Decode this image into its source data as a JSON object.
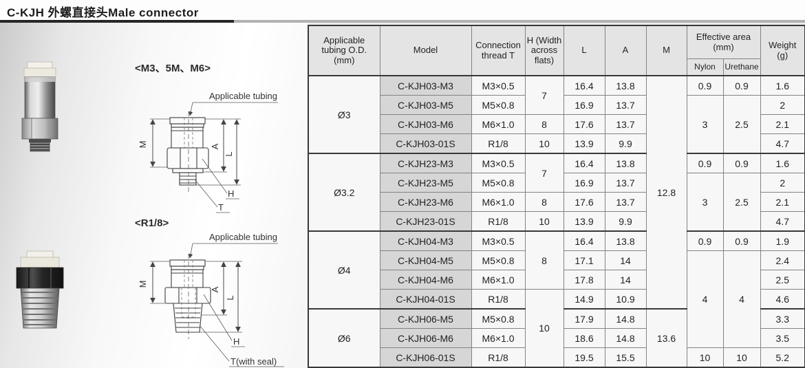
{
  "page": {
    "title": "C-KJH  外螺直接头Male connector"
  },
  "colors": {
    "title_accent_line": "#262626",
    "title_line_gray": "#b2b2b2",
    "table_header_bg": "#e4e4e4",
    "model_cell_bg": "#d6d6d6",
    "cell_bg": "#f7f7f7",
    "border_dark": "#383838",
    "border_light": "#828282",
    "left_panel_gradient_start": "#cbcbcb"
  },
  "left_panel": {
    "diagram1": {
      "variant_label": "<M3、5M、M6>",
      "tubing_label": "Applicable tubing",
      "dims": {
        "m": "M",
        "a": "A",
        "l": "L",
        "h": "H",
        "t": "T"
      }
    },
    "diagram2": {
      "variant_label": "<R1/8>",
      "tubing_label": "Applicable tubing",
      "dims": {
        "m": "M",
        "a": "A",
        "l": "L",
        "h": "H",
        "t": "T(with seal)"
      }
    }
  },
  "table": {
    "headers": {
      "od": "Applicable tubing O.D. (mm)",
      "model": "Model",
      "thread": "Connection thread T",
      "h": "H (Width across flats)",
      "l": "L",
      "a": "A",
      "m": "M",
      "eff": "Effective area (mm)",
      "nylon": "Nylon",
      "urethane": "Urethane",
      "weight": "Weight (g)"
    },
    "body_rows": [
      {
        "cells": [
          {
            "t": "Ø3",
            "rs": 4,
            "cls": "od"
          },
          {
            "t": "C-KJH03-M3",
            "cls": "model"
          },
          {
            "t": "M3×0.5"
          },
          {
            "t": "7",
            "rs": 2
          },
          {
            "t": "16.4"
          },
          {
            "t": "13.8"
          },
          {
            "t": "12.8",
            "rs": 12
          },
          {
            "t": "0.9"
          },
          {
            "t": "0.9"
          },
          {
            "t": "1.6"
          }
        ]
      },
      {
        "cells": [
          {
            "t": "C-KJH03-M5",
            "cls": "model"
          },
          {
            "t": "M5×0.8"
          },
          {
            "t": "16.9"
          },
          {
            "t": "13.7"
          },
          {
            "t": "3",
            "rs": 3
          },
          {
            "t": "2.5",
            "rs": 3
          },
          {
            "t": "2"
          }
        ]
      },
      {
        "cells": [
          {
            "t": "C-KJH03-M6",
            "cls": "model"
          },
          {
            "t": "M6×1.0"
          },
          {
            "t": "8"
          },
          {
            "t": "17.6"
          },
          {
            "t": "13.7"
          },
          {
            "t": "2.1"
          }
        ]
      },
      {
        "cells": [
          {
            "t": "C-KJH03-01S",
            "cls": "model"
          },
          {
            "t": "R1/8"
          },
          {
            "t": "10"
          },
          {
            "t": "13.9"
          },
          {
            "t": "9.9"
          },
          {
            "t": "4.7"
          }
        ]
      },
      {
        "group_start": true,
        "cells": [
          {
            "t": "Ø3.2",
            "rs": 4,
            "cls": "od"
          },
          {
            "t": "C-KJH23-M3",
            "cls": "model"
          },
          {
            "t": "M3×0.5"
          },
          {
            "t": "7",
            "rs": 2
          },
          {
            "t": "16.4"
          },
          {
            "t": "13.8"
          },
          {
            "t": "0.9"
          },
          {
            "t": "0.9"
          },
          {
            "t": "1.6"
          }
        ]
      },
      {
        "cells": [
          {
            "t": "C-KJH23-M5",
            "cls": "model"
          },
          {
            "t": "M5×0.8"
          },
          {
            "t": "16.9"
          },
          {
            "t": "13.7"
          },
          {
            "t": "3",
            "rs": 3
          },
          {
            "t": "2.5",
            "rs": 3
          },
          {
            "t": "2"
          }
        ]
      },
      {
        "cells": [
          {
            "t": "C-KJH23-M6",
            "cls": "model"
          },
          {
            "t": "M6×1.0"
          },
          {
            "t": "8"
          },
          {
            "t": "17.6"
          },
          {
            "t": "13.7"
          },
          {
            "t": "2.1"
          }
        ]
      },
      {
        "cells": [
          {
            "t": "C-KJH23-01S",
            "cls": "model"
          },
          {
            "t": "R1/8"
          },
          {
            "t": "10"
          },
          {
            "t": "13.9"
          },
          {
            "t": "9.9"
          },
          {
            "t": "4.7"
          }
        ]
      },
      {
        "group_start": true,
        "cells": [
          {
            "t": "Ø4",
            "rs": 4,
            "cls": "od"
          },
          {
            "t": "C-KJH04-M3",
            "cls": "model"
          },
          {
            "t": "M3×0.5"
          },
          {
            "t": "8",
            "rs": 3
          },
          {
            "t": "16.4"
          },
          {
            "t": "13.8"
          },
          {
            "t": "0.9"
          },
          {
            "t": "0.9"
          },
          {
            "t": "1.9"
          }
        ]
      },
      {
        "cells": [
          {
            "t": "C-KJH04-M5",
            "cls": "model"
          },
          {
            "t": "M5×0.8"
          },
          {
            "t": "17.1"
          },
          {
            "t": "14"
          },
          {
            "t": "4",
            "rs": 5
          },
          {
            "t": "4",
            "rs": 5
          },
          {
            "t": "2.4"
          }
        ]
      },
      {
        "cells": [
          {
            "t": "C-KJH04-M6",
            "cls": "model"
          },
          {
            "t": "M6×1.0"
          },
          {
            "t": "17.8"
          },
          {
            "t": "14"
          },
          {
            "t": "2.5"
          }
        ]
      },
      {
        "cells": [
          {
            "t": "C-KJH04-01S",
            "cls": "model"
          },
          {
            "t": "R1/8"
          },
          {
            "t": "10",
            "rs": 4
          },
          {
            "t": "14.9"
          },
          {
            "t": "10.9"
          },
          {
            "t": "4.6"
          }
        ]
      },
      {
        "group_start": true,
        "cells": [
          {
            "t": "Ø6",
            "rs": 3,
            "cls": "od"
          },
          {
            "t": "C-KJH06-M5",
            "cls": "model"
          },
          {
            "t": "M5×0.8"
          },
          {
            "t": "17.9"
          },
          {
            "t": "14.8"
          },
          {
            "t": "13.6",
            "rs": 3
          },
          {
            "t": "3.3"
          }
        ]
      },
      {
        "cells": [
          {
            "t": "C-KJH06-M6",
            "cls": "model"
          },
          {
            "t": "M6×1.0"
          },
          {
            "t": "18.6"
          },
          {
            "t": "14.8"
          },
          {
            "t": "3.5"
          }
        ]
      },
      {
        "cells": [
          {
            "t": "C-KJH06-01S",
            "cls": "model"
          },
          {
            "t": "R1/8"
          },
          {
            "t": "19.5"
          },
          {
            "t": "15.5"
          },
          {
            "t": "10"
          },
          {
            "t": "10"
          },
          {
            "t": "5.2"
          }
        ]
      }
    ]
  }
}
